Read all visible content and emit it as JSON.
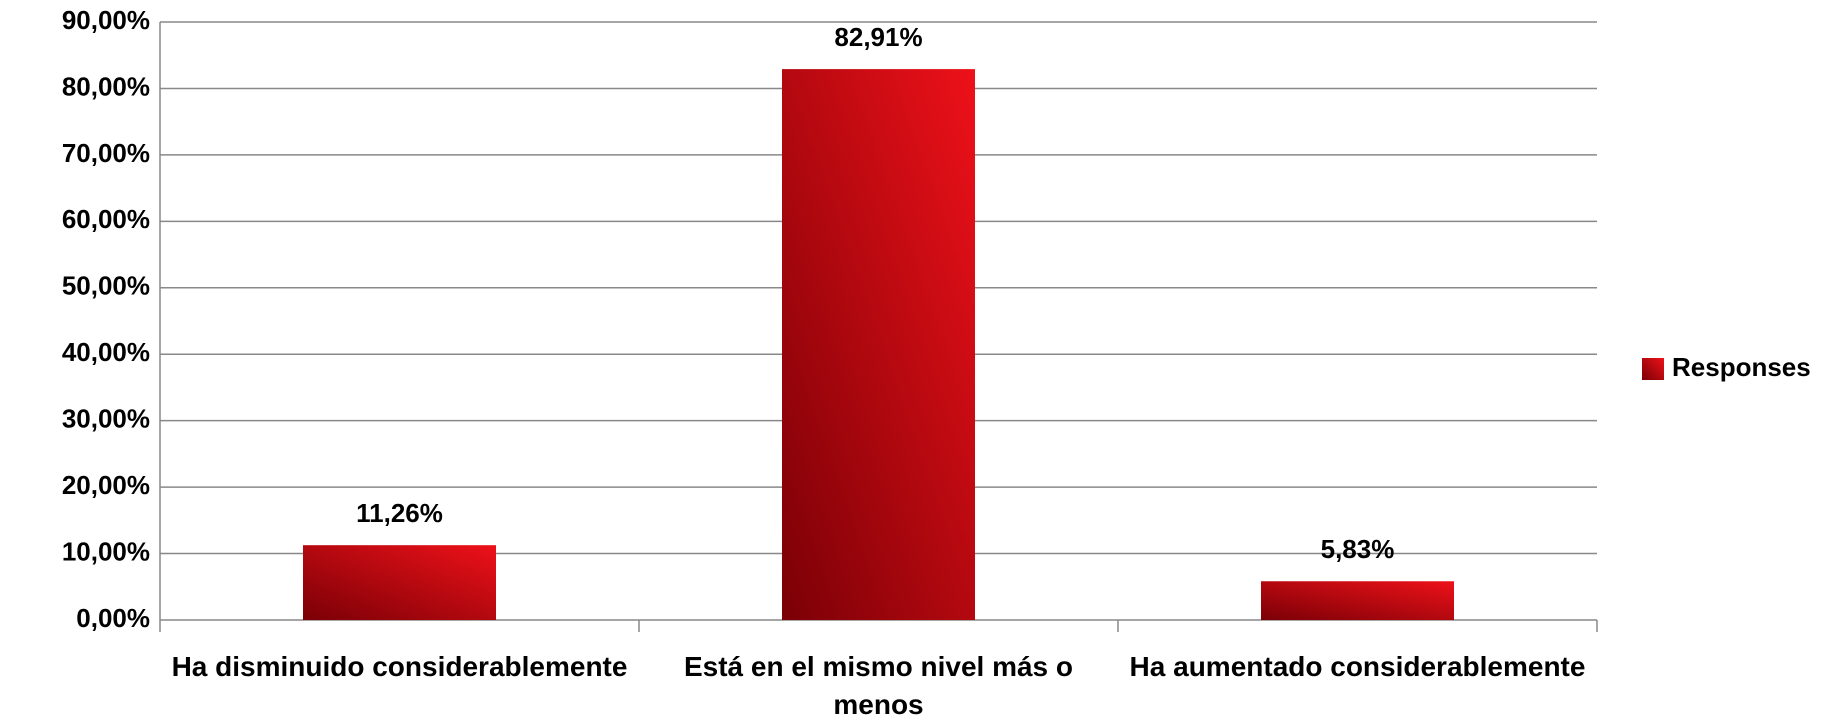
{
  "chart_data": {
    "type": "bar",
    "categories": [
      "Ha disminuido considerablemente",
      "Está en el mismo nivel más o menos",
      "Ha aumentado considerablemente"
    ],
    "series": [
      {
        "name": "Responses",
        "color": "#ee1119",
        "values": [
          11.26,
          82.91,
          5.83
        ],
        "value_labels": [
          "11,26%",
          "82,91%",
          "5,83%"
        ]
      }
    ],
    "ylim": [
      0,
      90
    ],
    "yticks": [
      {
        "value": 0,
        "label": "0,00%"
      },
      {
        "value": 10,
        "label": "10,00%"
      },
      {
        "value": 20,
        "label": "20,00%"
      },
      {
        "value": 30,
        "label": "30,00%"
      },
      {
        "value": 40,
        "label": "40,00%"
      },
      {
        "value": 50,
        "label": "50,00%"
      },
      {
        "value": 60,
        "label": "60,00%"
      },
      {
        "value": 70,
        "label": "70,00%"
      },
      {
        "value": 80,
        "label": "80,00%"
      },
      {
        "value": 90,
        "label": "90,00%"
      }
    ],
    "grid": true,
    "legend": "right"
  }
}
